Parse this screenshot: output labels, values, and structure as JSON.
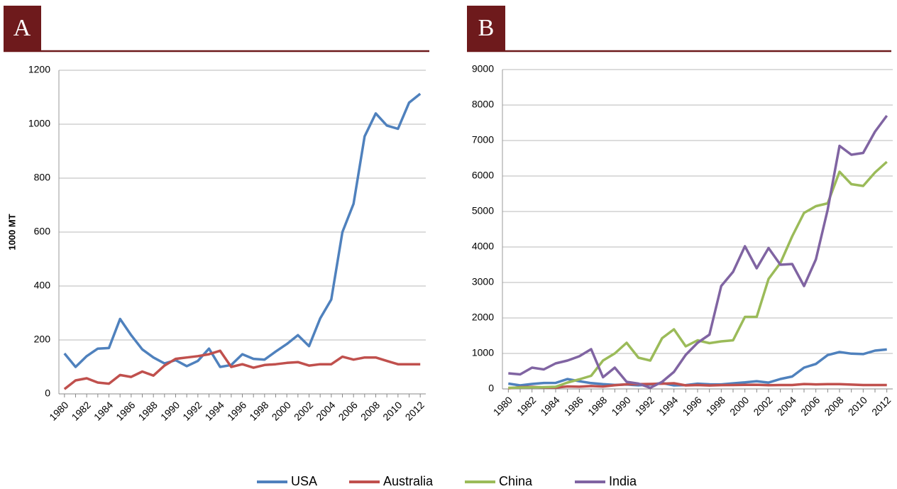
{
  "chart_data": [
    {
      "type": "line",
      "title": "A",
      "y_label": "1000 MT",
      "categories": [
        "1980",
        null,
        "1982",
        null,
        "1984",
        null,
        "1986",
        null,
        "1988",
        null,
        "1990",
        null,
        "1992",
        null,
        "1994",
        null,
        "1996",
        null,
        "1998",
        null,
        "2000",
        null,
        "2002",
        null,
        "2004",
        null,
        "2006",
        null,
        "2008",
        null,
        "2010",
        null,
        "2012"
      ],
      "ylim": [
        0,
        1200
      ],
      "yticks": [
        0,
        200,
        400,
        600,
        800,
        1000,
        1200
      ],
      "grid": true,
      "series": [
        {
          "color": "#4f81bd",
          "values": [
            150,
            100,
            140,
            168,
            170,
            278,
            218,
            165,
            135,
            113,
            125,
            103,
            122,
            168,
            100,
            107,
            147,
            130,
            127,
            157,
            185,
            218,
            177,
            280,
            350,
            600,
            705,
            955,
            1040,
            995,
            983,
            1080,
            1113
          ]
        },
        {
          "color": "#c0504d",
          "values": [
            18,
            50,
            58,
            42,
            38,
            70,
            63,
            83,
            68,
            105,
            130,
            135,
            140,
            147,
            160,
            100,
            110,
            97,
            107,
            110,
            115,
            118,
            105,
            110,
            110,
            138,
            127,
            135,
            135,
            122,
            110,
            110,
            110
          ]
        }
      ]
    },
    {
      "type": "line",
      "title": "B",
      "categories": [
        "1980",
        null,
        "1982",
        null,
        "1984",
        null,
        "1986",
        null,
        "1988",
        null,
        "1990",
        null,
        "1992",
        null,
        "1994",
        null,
        "1996",
        null,
        "1998",
        null,
        "2000",
        null,
        "2002",
        null,
        "2004",
        null,
        "2006",
        null,
        "2008",
        null,
        "2010",
        null,
        "2012"
      ],
      "ylim": [
        0,
        9000
      ],
      "yticks": [
        0,
        1000,
        2000,
        3000,
        4000,
        5000,
        6000,
        7000,
        8000,
        9000
      ],
      "grid": true,
      "series": [
        {
          "name": "USA",
          "color": "#4f81bd",
          "values": [
            150,
            100,
            140,
            168,
            170,
            278,
            218,
            165,
            135,
            113,
            125,
            103,
            122,
            168,
            100,
            107,
            147,
            130,
            127,
            157,
            185,
            218,
            177,
            280,
            350,
            600,
            705,
            955,
            1040,
            995,
            983,
            1080,
            1113
          ]
        },
        {
          "name": "Australia",
          "color": "#c0504d",
          "values": [
            18,
            50,
            58,
            42,
            38,
            70,
            63,
            83,
            68,
            105,
            130,
            135,
            140,
            147,
            160,
            100,
            110,
            97,
            107,
            110,
            115,
            118,
            105,
            110,
            110,
            138,
            127,
            135,
            135,
            122,
            110,
            110,
            110
          ]
        },
        {
          "name": "China",
          "color": "#9bbb59",
          "values": [
            30,
            40,
            45,
            50,
            60,
            180,
            270,
            370,
            800,
            1000,
            1300,
            880,
            800,
            1430,
            1680,
            1200,
            1370,
            1290,
            1340,
            1370,
            2030,
            2030,
            3100,
            3550,
            4300,
            4960,
            5150,
            5230,
            6120,
            5770,
            5720,
            6100,
            6400
          ]
        },
        {
          "name": "India",
          "color": "#8064a2",
          "values": [
            440,
            410,
            600,
            550,
            720,
            800,
            920,
            1120,
            330,
            600,
            200,
            150,
            30,
            200,
            480,
            960,
            1300,
            1530,
            2900,
            3300,
            4020,
            3400,
            3970,
            3500,
            3520,
            2900,
            3650,
            5050,
            6850,
            6600,
            6650,
            7250,
            7700
          ]
        }
      ]
    }
  ]
}
